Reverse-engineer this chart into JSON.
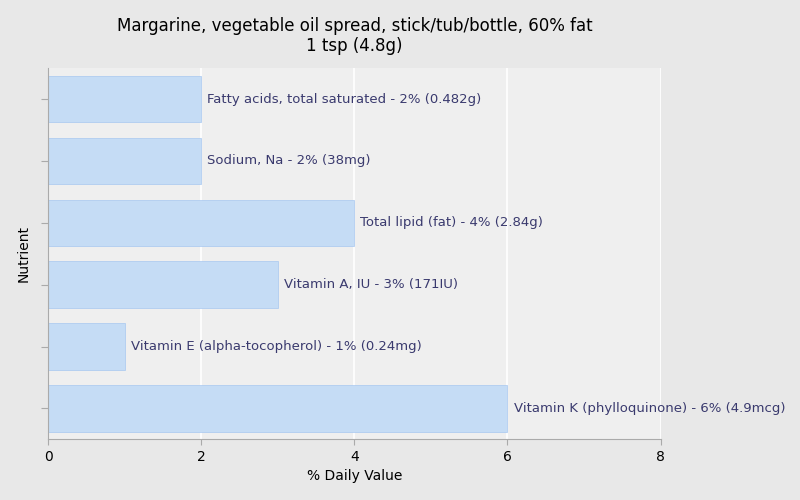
{
  "title": "Margarine, vegetable oil spread, stick/tub/bottle, 60% fat\n1 tsp (4.8g)",
  "xlabel": "% Daily Value",
  "ylabel": "Nutrient",
  "xlim": [
    0,
    8
  ],
  "bar_color": "#c5dcf5",
  "bar_edgecolor": "#a8c8f0",
  "background_color": "#e8e8e8",
  "plot_bg_color": "#efefef",
  "nutrients": [
    "Fatty acids, total saturated",
    "Sodium, Na",
    "Total lipid (fat)",
    "Vitamin A, IU",
    "Vitamin E (alpha-tocopherol)",
    "Vitamin K (phylloquinone)"
  ],
  "values": [
    2,
    2,
    4,
    3,
    1,
    6
  ],
  "labels": [
    "Fatty acids, total saturated - 2% (0.482g)",
    "Sodium, Na - 2% (38mg)",
    "Total lipid (fat) - 4% (2.84g)",
    "Vitamin A, IU - 3% (171IU)",
    "Vitamin E (alpha-tocopherol) - 1% (0.24mg)",
    "Vitamin K (phylloquinone) - 6% (4.9mcg)"
  ],
  "label_color": "#3a3a6e",
  "title_fontsize": 12,
  "label_fontsize": 9.5,
  "axis_label_fontsize": 10,
  "tick_fontsize": 10,
  "grid_color": "#ffffff",
  "spine_color": "#aaaaaa"
}
